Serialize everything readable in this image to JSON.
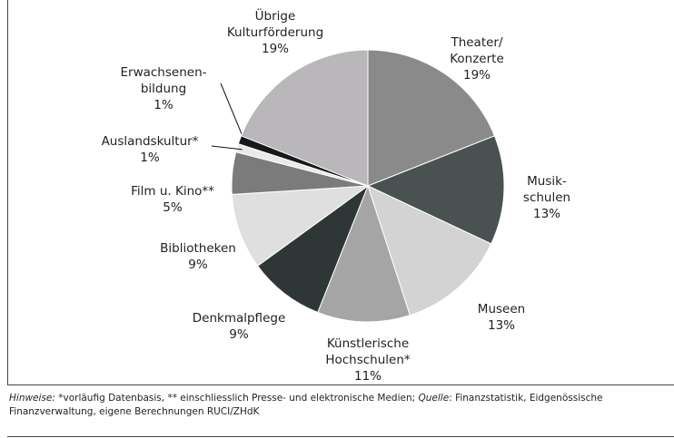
{
  "chart_data": {
    "type": "pie",
    "categories": [
      "Theater/\nKonzerte",
      "Musik-\nschulen",
      "Museen",
      "Künstlerische\nHochschulen*",
      "Denkmalpflege",
      "Bibliotheken",
      "Film u. Kino**",
      "Auslandskultur*",
      "Erwachsenen-\nbildung",
      "Übrige\nKulturförderung"
    ],
    "values": [
      19,
      13,
      13,
      11,
      9,
      9,
      5,
      1,
      1,
      19
    ],
    "value_labels": [
      "19%",
      "13%",
      "13%",
      "11%",
      "9%",
      "9%",
      "5%",
      "1%",
      "1%",
      "19%"
    ],
    "colors": [
      "#8a8a8a",
      "#4a5151",
      "#d3d3d3",
      "#a5a5a5",
      "#2f3636",
      "#dfdfdf",
      "#7b7b7b",
      "#e9e9e9",
      "#151919",
      "#b9b7b9"
    ]
  },
  "footnote": {
    "hinweise_label": "Hinweise:",
    "hinweise_text": " *vorläufig Datenbasis, ** einschliesslich Presse- und elektronische Medien; ",
    "quelle_label": "Quelle",
    "quelle_text": ": Finanzstatistik, Eidgenössische Finanzverwaltung, eigene Berechnungen RUCI/ZHdK"
  }
}
